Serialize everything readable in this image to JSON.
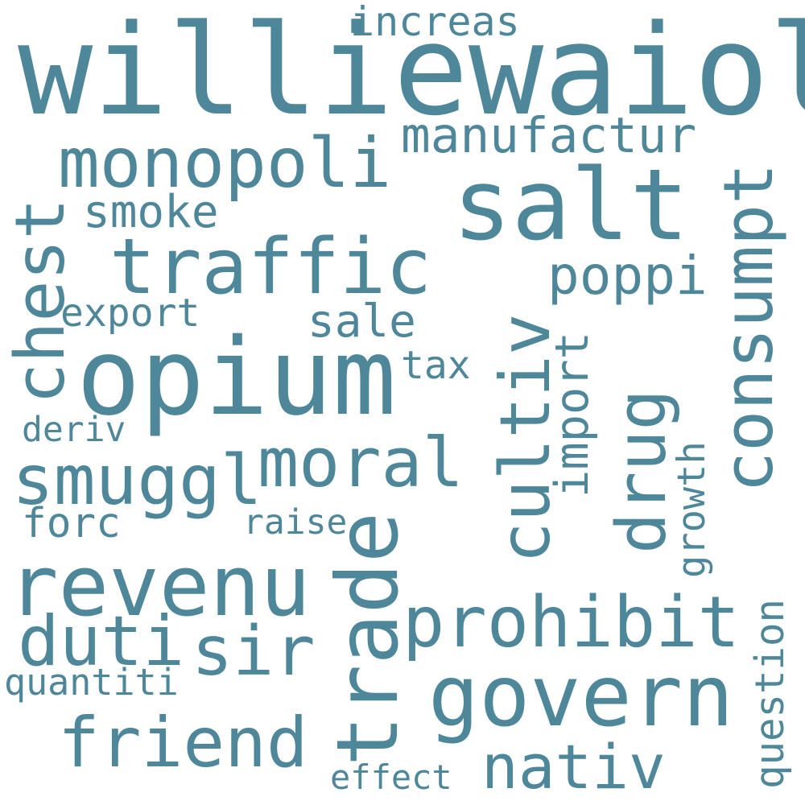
{
  "color": "#4d8799",
  "words": {
    "williewaiola": "williewaiola",
    "increas": "increas",
    "manufactur": "manufactur",
    "monopoli": "monopoli",
    "salt": "salt",
    "smoke": "smoke",
    "chest": "chest",
    "traffic": "traffic",
    "consumpt": "consumpt",
    "poppi": "poppi",
    "export": "export",
    "sale": "sale",
    "cultiv": "cultiv",
    "opium": "opium",
    "tax": "tax",
    "import": "import",
    "drug": "drug",
    "deriv": "deriv",
    "smuggl": "smuggl",
    "moral": "moral",
    "growth": "growth",
    "forc": "forc",
    "raise": "raise",
    "trade": "trade",
    "revenu": "revenu",
    "prohibit": "prohibit",
    "duti": "duti",
    "sir": "sir",
    "question": "question",
    "quantiti": "quantiti",
    "govern": "govern",
    "friend": "friend",
    "nativ": "nativ",
    "effect": "effect"
  }
}
